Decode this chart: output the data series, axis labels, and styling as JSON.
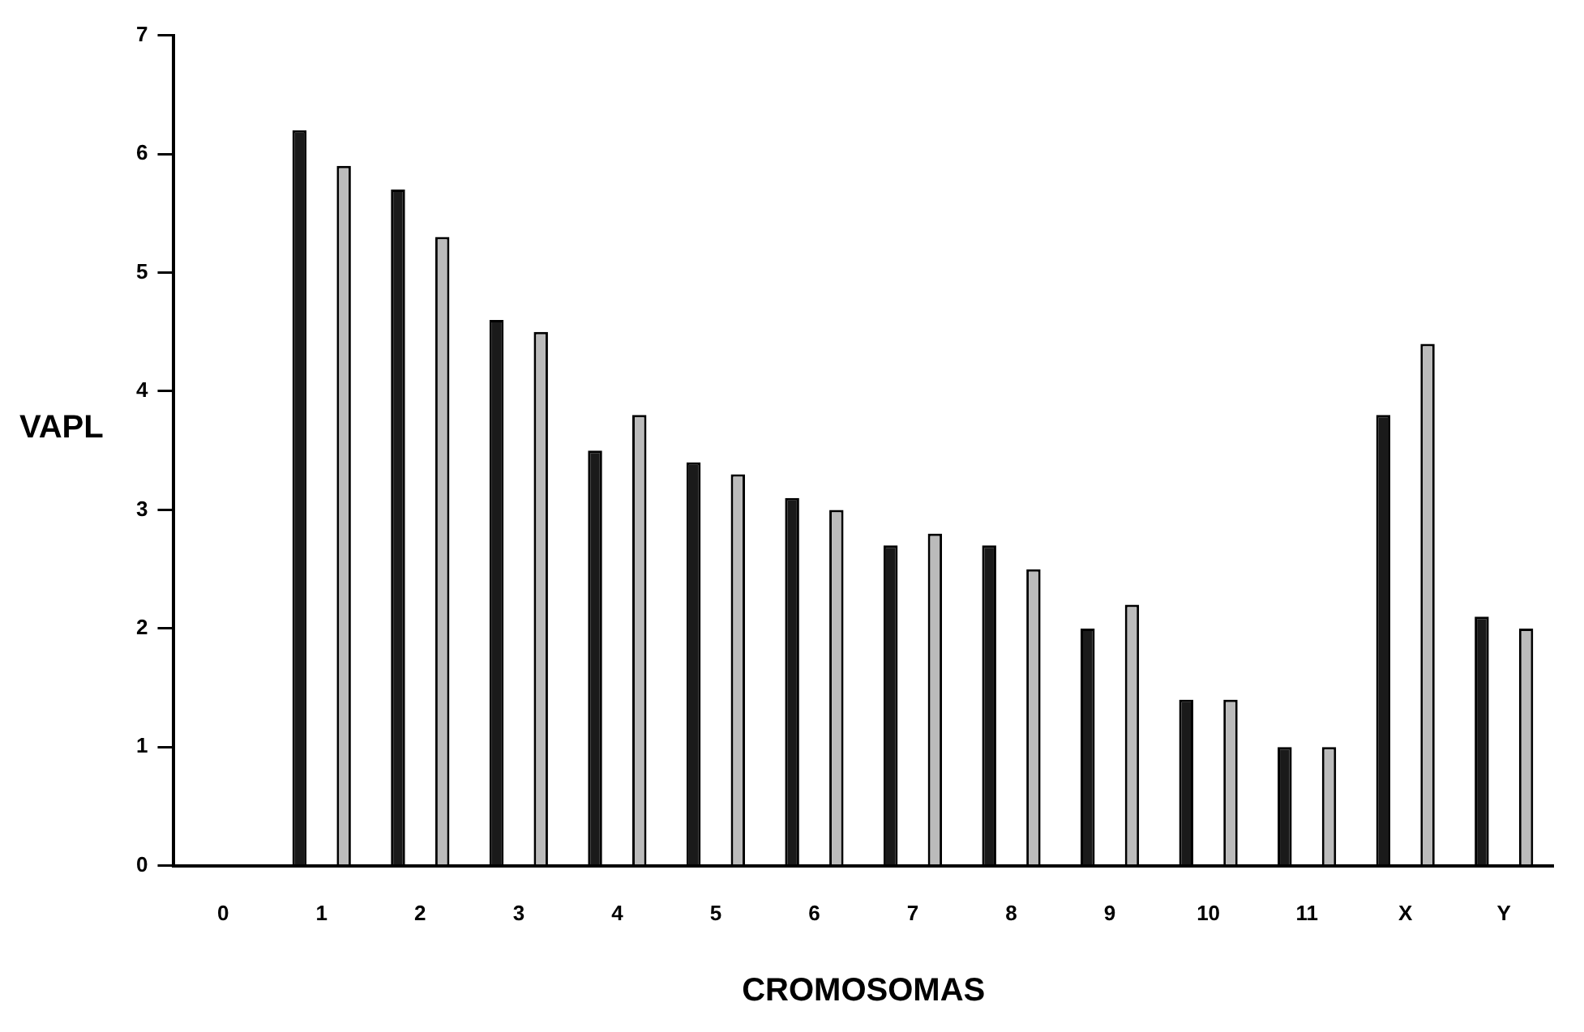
{
  "chart_data": {
    "type": "bar",
    "xlabel": "CROMOSOMAS",
    "ylabel": "VAPL",
    "categories": [
      "0",
      "1",
      "2",
      "3",
      "4",
      "5",
      "6",
      "7",
      "8",
      "9",
      "10",
      "11",
      "X",
      "Y"
    ],
    "series": [
      {
        "color": "#1a1a1a",
        "values": [
          null,
          6.2,
          5.7,
          4.6,
          3.5,
          3.4,
          3.1,
          2.7,
          2.7,
          2.0,
          1.4,
          1.0,
          3.8,
          2.1
        ]
      },
      {
        "color": "#bbbbbb",
        "values": [
          null,
          5.9,
          5.3,
          4.5,
          3.8,
          3.3,
          3.0,
          2.8,
          2.5,
          2.2,
          1.4,
          1.0,
          4.4,
          2.0
        ]
      }
    ],
    "ylim": [
      0,
      7
    ],
    "yticks": [
      0,
      1,
      2,
      3,
      4,
      5,
      6,
      7
    ],
    "grid": false,
    "legend": false
  }
}
